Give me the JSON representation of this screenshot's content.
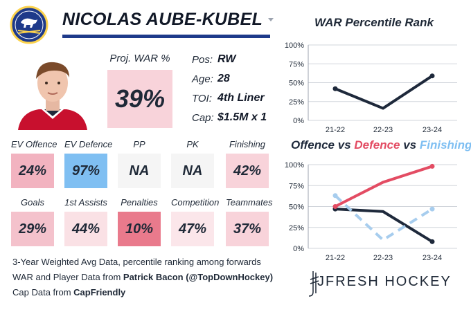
{
  "header": {
    "player_name": "NICOLAS AUBE-KUBEL",
    "logo": "sabres-logo",
    "accent_color": "#1e3a8a"
  },
  "projection": {
    "label": "Proj. WAR %",
    "value": "39%",
    "color": "#f8d3da"
  },
  "info": {
    "pos_label": "Pos:",
    "pos": "RW",
    "age_label": "Age:",
    "age": "28",
    "toi_label": "TOI:",
    "toi": "4th Liner",
    "cap_label": "Cap:",
    "cap": "$1.5M x 1"
  },
  "tiles_row1": [
    {
      "label": "EV Offence",
      "value": "24%",
      "color": "#f2b3c0"
    },
    {
      "label": "EV Defence",
      "value": "97%",
      "color": "#7fbff2"
    },
    {
      "label": "PP",
      "value": "NA",
      "color": "#f5f5f5"
    },
    {
      "label": "PK",
      "value": "NA",
      "color": "#f5f5f5"
    },
    {
      "label": "Finishing",
      "value": "42%",
      "color": "#f8d3da"
    }
  ],
  "tiles_row2": [
    {
      "label": "Goals",
      "value": "29%",
      "color": "#f4c2cc"
    },
    {
      "label": "1st Assists",
      "value": "44%",
      "color": "#fae1e5"
    },
    {
      "label": "Penalties",
      "value": "10%",
      "color": "#e97a8c"
    },
    {
      "label": "Competition",
      "value": "47%",
      "color": "#fbe6ea"
    },
    {
      "label": "Teammates",
      "value": "37%",
      "color": "#f8d3da"
    }
  ],
  "footer": {
    "line1": "3-Year Weighted Avg Data, percentile ranking among forwards",
    "line2_prefix": "WAR and Player Data from ",
    "line2_bold": "Patrick Bacon (@TopDownHockey)",
    "line3_prefix": "Cap Data from ",
    "line3_bold": "CapFriendly",
    "brand": "JFRESH HOCKEY"
  },
  "chart_data": [
    {
      "type": "line",
      "title": "WAR Percentile Rank",
      "x": [
        "21-22",
        "22-23",
        "23-24"
      ],
      "yticks": [
        "0%",
        "25%",
        "50%",
        "75%",
        "100%"
      ],
      "ylim": [
        0,
        100
      ],
      "grid": true,
      "series": [
        {
          "values": [
            42,
            16,
            59
          ],
          "color": "#1e293b"
        }
      ]
    },
    {
      "type": "line",
      "title_parts": [
        {
          "text": "Offence",
          "color": "#1e293b"
        },
        {
          "text": " vs ",
          "color": "#1e293b"
        },
        {
          "text": "Defence",
          "color": "#e34c63"
        },
        {
          "text": " vs ",
          "color": "#1e293b"
        },
        {
          "text": "Finishing",
          "color": "#7fbff2"
        }
      ],
      "x": [
        "21-22",
        "22-23",
        "23-24"
      ],
      "yticks": [
        "0%",
        "25%",
        "50%",
        "75%",
        "100%"
      ],
      "ylim": [
        0,
        100
      ],
      "grid": true,
      "series": [
        {
          "name": "Offence",
          "values": [
            47,
            44,
            8
          ],
          "color": "#1e293b",
          "dash": false
        },
        {
          "name": "Defence",
          "values": [
            50,
            79,
            98
          ],
          "color": "#e34c63",
          "dash": false
        },
        {
          "name": "Finishing",
          "values": [
            63,
            10,
            47
          ],
          "color": "#a7cdee",
          "dash": true
        }
      ]
    }
  ]
}
